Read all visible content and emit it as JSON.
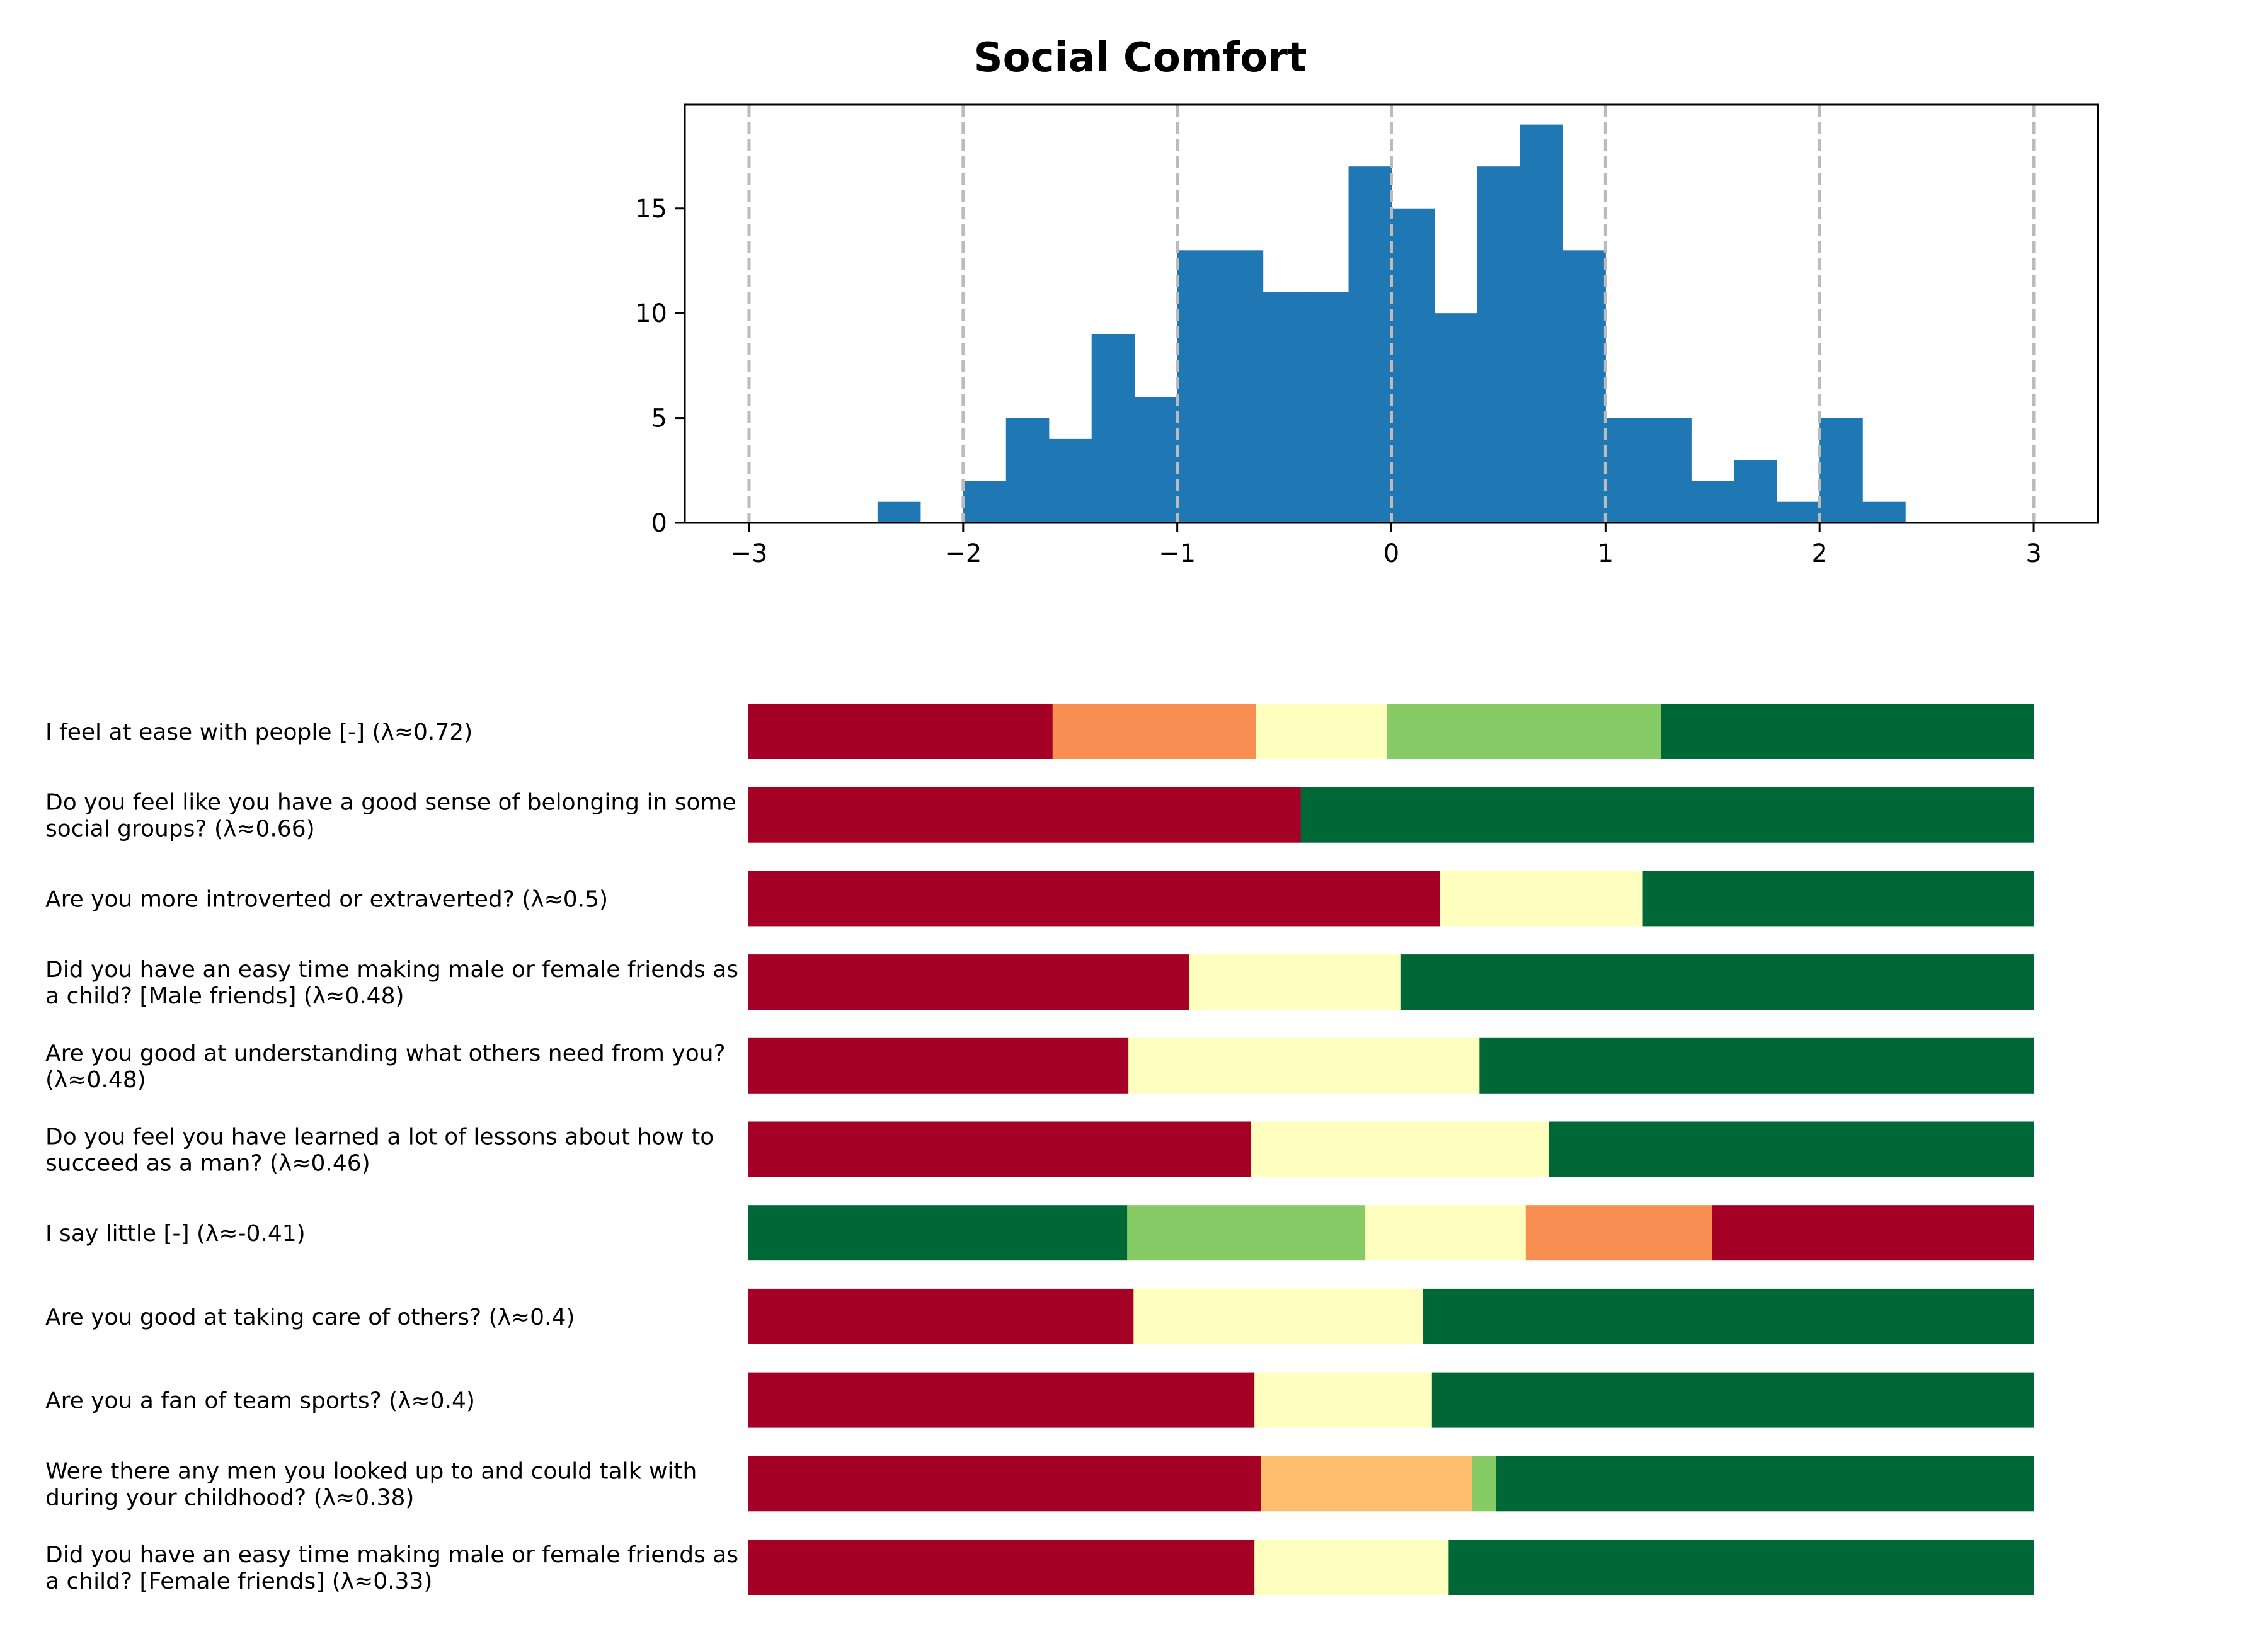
{
  "chart_data": [
    {
      "type": "bar",
      "subtype": "histogram",
      "title": "Social Comfort",
      "xlabel": "",
      "ylabel": "",
      "xlim": [
        -3.3,
        3.3
      ],
      "ylim": [
        0,
        19.95
      ],
      "xticks": [
        -3,
        -2,
        -1,
        0,
        1,
        2,
        3
      ],
      "xtick_labels": [
        "−3",
        "−2",
        "−1",
        "0",
        "1",
        "2",
        "3"
      ],
      "yticks": [
        0,
        5,
        10,
        15
      ],
      "ytick_labels": [
        "0",
        "5",
        "10",
        "15"
      ],
      "reference_lines": [
        -3,
        -2,
        -1,
        0,
        1,
        2,
        3
      ],
      "bin_start": -2.4,
      "bin_width": 0.2,
      "counts": [
        1,
        0,
        2,
        5,
        4,
        9,
        6,
        13,
        13,
        11,
        11,
        17,
        15,
        10,
        17,
        19,
        13,
        5,
        5,
        2,
        3,
        1,
        5,
        1
      ],
      "color": "#1f77b4"
    },
    {
      "type": "bar",
      "subtype": "stacked-horizontal-proportions",
      "palette": {
        "1": "#a50026",
        "2": "#f98e52",
        "2b": "#fdbf6f",
        "3": "#feffbe",
        "4": "#86cb66",
        "5": "#006837"
      },
      "items": [
        {
          "label": "I feel at ease with people [-] (λ≈0.72)",
          "segments": [
            {
              "color": "1",
              "value": 0.237
            },
            {
              "color": "2",
              "value": 0.158
            },
            {
              "color": "3",
              "value": 0.102
            },
            {
              "color": "4",
              "value": 0.213
            },
            {
              "color": "5",
              "value": 0.29
            }
          ]
        },
        {
          "label": "Do you feel like you have a good sense of belonging in some social groups? (λ≈0.66)",
          "segments": [
            {
              "color": "1",
              "value": 0.43
            },
            {
              "color": "5",
              "value": 0.57
            }
          ]
        },
        {
          "label": "Are you more introverted or extraverted? (λ≈0.5)",
          "segments": [
            {
              "color": "1",
              "value": 0.538
            },
            {
              "color": "3",
              "value": 0.158
            },
            {
              "color": "5",
              "value": 0.304
            }
          ]
        },
        {
          "label": "Did you have an easy time making male or female friends as a child? [Male friends] (λ≈0.48)",
          "segments": [
            {
              "color": "1",
              "value": 0.343
            },
            {
              "color": "3",
              "value": 0.165
            },
            {
              "color": "5",
              "value": 0.492
            }
          ]
        },
        {
          "label": "Are you good at understanding what others need from you? (λ≈0.48)",
          "segments": [
            {
              "color": "1",
              "value": 0.296
            },
            {
              "color": "3",
              "value": 0.273
            },
            {
              "color": "5",
              "value": 0.431
            }
          ]
        },
        {
          "label": "Do you feel you have learned a lot of lessons about how to succeed as a man? (λ≈0.46)",
          "segments": [
            {
              "color": "1",
              "value": 0.391
            },
            {
              "color": "3",
              "value": 0.232
            },
            {
              "color": "5",
              "value": 0.377
            }
          ]
        },
        {
          "label": "I say little [-] (λ≈-0.41)",
          "segments": [
            {
              "color": "5",
              "value": 0.295
            },
            {
              "color": "4",
              "value": 0.185
            },
            {
              "color": "3",
              "value": 0.125
            },
            {
              "color": "2",
              "value": 0.145
            },
            {
              "color": "1",
              "value": 0.25
            }
          ]
        },
        {
          "label": "Are you good at taking care of others? (λ≈0.4)",
          "segments": [
            {
              "color": "1",
              "value": 0.3
            },
            {
              "color": "3",
              "value": 0.225
            },
            {
              "color": "5",
              "value": 0.475
            }
          ]
        },
        {
          "label": "Are you a fan of team sports? (λ≈0.4)",
          "segments": [
            {
              "color": "1",
              "value": 0.394
            },
            {
              "color": "3",
              "value": 0.138
            },
            {
              "color": "5",
              "value": 0.468
            }
          ]
        },
        {
          "label": "Were there any men you looked up to and could talk with during your childhood? (λ≈0.38)",
          "segments": [
            {
              "color": "1",
              "value": 0.399
            },
            {
              "color": "2b",
              "value": 0.164
            },
            {
              "color": "4",
              "value": 0.019
            },
            {
              "color": "5",
              "value": 0.418
            }
          ]
        },
        {
          "label": "Did you have an easy time making male or female friends as a child? [Female friends] (λ≈0.33)",
          "segments": [
            {
              "color": "1",
              "value": 0.394
            },
            {
              "color": "3",
              "value": 0.151
            },
            {
              "color": "5",
              "value": 0.455
            }
          ]
        }
      ]
    }
  ]
}
